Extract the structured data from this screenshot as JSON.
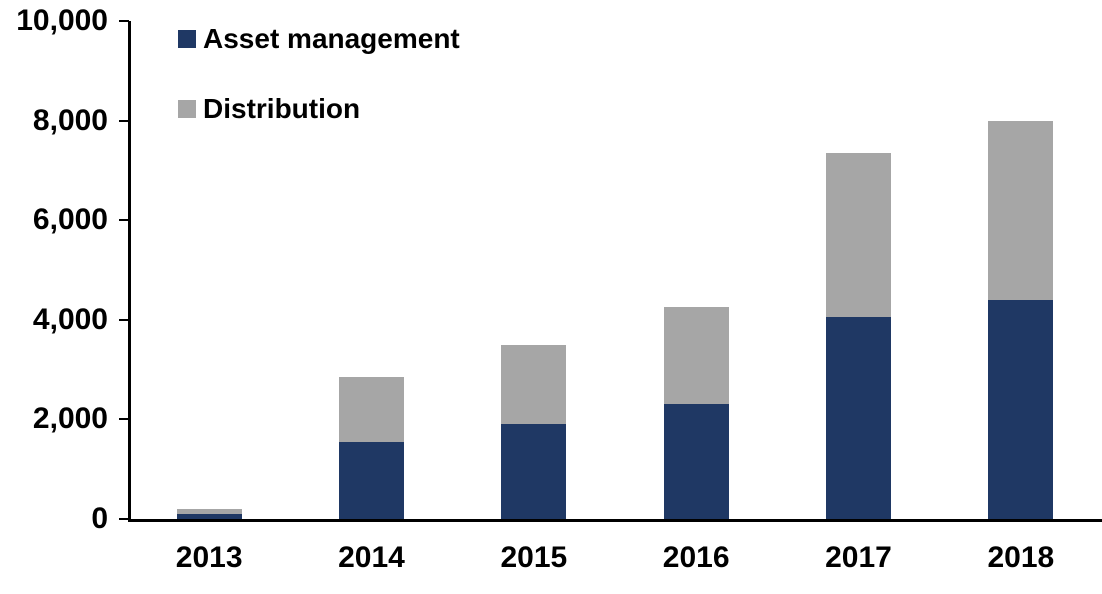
{
  "chart_data": {
    "type": "bar",
    "stacked": true,
    "title": "",
    "xlabel": "",
    "ylabel": "",
    "categories": [
      "2013",
      "2014",
      "2015",
      "2016",
      "2017",
      "2018"
    ],
    "series": [
      {
        "name": "Asset management",
        "color": "#1F3864",
        "values": [
          100,
          1550,
          1900,
          2300,
          4050,
          4400
        ]
      },
      {
        "name": "Distribution",
        "color": "#A6A6A6",
        "values": [
          100,
          1300,
          1600,
          1950,
          3300,
          3600
        ]
      }
    ],
    "totals": [
      200,
      2850,
      3500,
      4250,
      7350,
      8000
    ],
    "ylim": [
      0,
      10000
    ],
    "yticks": [
      0,
      2000,
      4000,
      6000,
      8000,
      10000
    ],
    "ytick_labels": [
      "0",
      "2,000",
      "4,000",
      "6,000",
      "8,000",
      "10,000"
    ],
    "grid": false,
    "legend_position": "top-left-inside"
  },
  "legend": {
    "items": [
      {
        "label": "Asset management",
        "color": "#1F3864"
      },
      {
        "label": "Distribution",
        "color": "#A6A6A6"
      }
    ]
  },
  "colors": {
    "axis": "#000000",
    "text": "#000000",
    "background": "#FFFFFF",
    "asset_management": "#1F3864",
    "distribution": "#A6A6A6"
  }
}
